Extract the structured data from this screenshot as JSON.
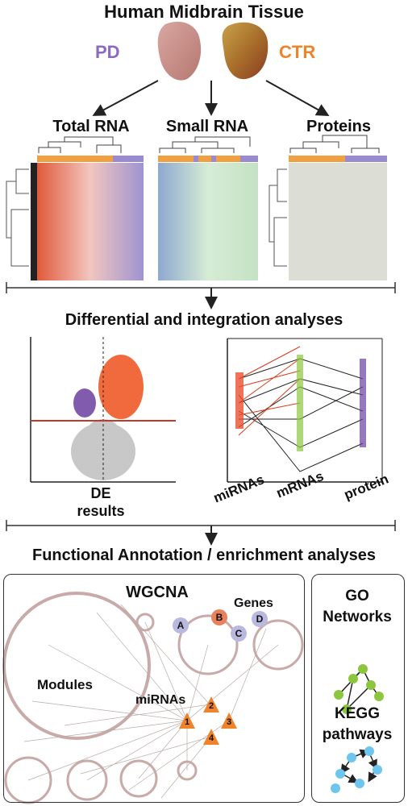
{
  "header": {
    "title": "Human Midbrain Tissue",
    "group_pd": "PD",
    "group_ctr": "CTR"
  },
  "heatmaps": {
    "total_rna": "Total RNA",
    "small_rna": "Small RNA",
    "proteins": "Proteins"
  },
  "analyses": {
    "title": "Differential and integration analyses",
    "volcano_label_1": "DE",
    "volcano_label_2": "results",
    "axis_mirnas": "miRNAs",
    "axis_mrnas": "mRNAs",
    "axis_protein": "protein"
  },
  "functional": {
    "title": "Functional Annotation / enrichment analyses",
    "wgcna": "WGCNA",
    "genes": "Genes",
    "modules": "Modules",
    "mirnas": "miRNAs",
    "gene_nodes": [
      "A",
      "B",
      "C",
      "D"
    ],
    "mirna_nodes": [
      "1",
      "2",
      "3",
      "4"
    ],
    "go_1": "GO",
    "go_2": "Networks",
    "kegg_1": "KEGG",
    "kegg_2": "pathways"
  },
  "colors": {
    "pd": "#8a6ac2",
    "ctr": "#f0822a",
    "de_up": "#f05a28",
    "de_down": "#6b3fa0",
    "threshold": "#c0392b",
    "mirna_node": "#f0822a",
    "gene_node": "#b9b9e0",
    "gene_node_b": "#e8825a",
    "go_node": "#8cc63f",
    "kegg_node": "#6ec6ee"
  }
}
